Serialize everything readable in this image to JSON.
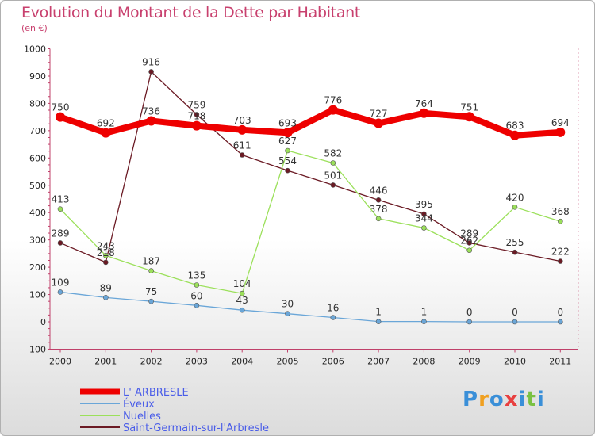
{
  "chart_data": {
    "type": "line",
    "title": "Evolution du Montant de la Dette par Habitant",
    "subtitle": "(en €)",
    "xlabel": "",
    "ylabel": "",
    "ylim": [
      -100,
      1000
    ],
    "yticks": [
      "-100",
      "0",
      "100",
      "200",
      "300",
      "400",
      "500",
      "600",
      "700",
      "800",
      "900",
      "1000"
    ],
    "x": [
      "2000",
      "2001",
      "2002",
      "2003",
      "2004",
      "2005",
      "2006",
      "2007",
      "2008",
      "2009",
      "2010",
      "2011"
    ],
    "grid": false,
    "legend_position": "bottom-left",
    "series": [
      {
        "name": "Saint-Germain-sur-l'Arbresle",
        "color": "#6b1a24",
        "values": [
          289,
          218,
          916,
          759,
          611,
          554,
          501,
          446,
          395,
          289,
          255,
          222
        ]
      },
      {
        "name": "Nuelles",
        "color": "#9be05a",
        "values": [
          413,
          243,
          187,
          135,
          104,
          627,
          582,
          378,
          344,
          262,
          420,
          368
        ]
      },
      {
        "name": "Éveux",
        "color": "#6aa6d8",
        "values": [
          109,
          89,
          75,
          60,
          43,
          30,
          16,
          1,
          1,
          0,
          0,
          0
        ]
      },
      {
        "name": "L' ARBRESLE",
        "color": "#ee0000",
        "values": [
          750,
          692,
          736,
          718,
          703,
          693,
          776,
          727,
          764,
          751,
          683,
          694
        ]
      }
    ]
  },
  "legend": {
    "items": [
      "L' ARBRESLE",
      "Éveux",
      "Nuelles",
      "Saint-Germain-sur-l'Arbresle"
    ]
  },
  "logo": {
    "text": "Proxiti",
    "letters": [
      "P",
      "r",
      "o",
      "x",
      "i",
      "t",
      "i"
    ],
    "colors": [
      "#3a8fd8",
      "#f0a020",
      "#3a8fd8",
      "#e84040",
      "#3a8fd8",
      "#7ac142",
      "#3a8fd8"
    ]
  }
}
